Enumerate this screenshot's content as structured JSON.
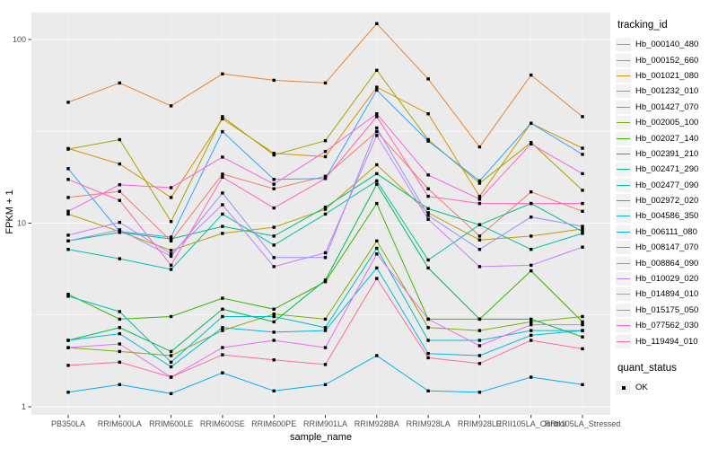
{
  "figure": {
    "background": "#FFFFFF",
    "panel_bg": "#EBEBEB",
    "grid_color": "#FFFFFF",
    "tick_label_color": "#4D4D4D",
    "axis_title_color": "#000000"
  },
  "chart_data": {
    "type": "line",
    "title": "",
    "xlabel": "sample_name",
    "ylabel": "FPKM + 1",
    "y_scale": "log10",
    "grid": true,
    "legend_position": "right",
    "y_ticks": [
      {
        "label": "100",
        "value": 100
      },
      {
        "label": "10",
        "value": 10
      },
      {
        "label": "1",
        "value": 1
      }
    ],
    "y_minor_breaks": [
      31.623,
      3.1623
    ],
    "ylim": [
      0.9,
      140
    ],
    "categories": [
      "PB350LA",
      "RRIM600LA",
      "RRIM600LE",
      "RRIM600SE",
      "RRIM600PE",
      "RRIM901LA",
      "RRIM928BA",
      "RRIM928LA",
      "RRIM928LE",
      "RRII105LA_Control",
      "RRII105LA_Stressed"
    ],
    "color_legend_title": "tracking_id",
    "shape_legend_title": "quant_status",
    "shape_legend": [
      {
        "label": "OK",
        "marker": "square",
        "color": "#000000"
      }
    ],
    "point_marker": {
      "shape": "square",
      "color": "#000000",
      "size": 3.4
    },
    "series": [
      {
        "name": "Hb_000140_480",
        "color": "#F8766D",
        "values": [
          13.8,
          14.9,
          8.0,
          18.5,
          15.4,
          18.0,
          31.5,
          15.4,
          8.5,
          14.8,
          11.6
        ]
      },
      {
        "name": "Hb_000152_660",
        "color": "#EA8331",
        "values": [
          45.5,
          58,
          43.5,
          65,
          60,
          58,
          122,
          61,
          26,
          64,
          38
        ]
      },
      {
        "name": "Hb_001021_080",
        "color": "#D89000",
        "values": [
          25.5,
          21,
          13.8,
          37,
          24,
          23,
          55,
          39.4,
          14,
          35,
          25.6
        ]
      },
      {
        "name": "Hb_001232_010",
        "color": "#C09B00",
        "values": [
          11.2,
          9.0,
          7.1,
          8.8,
          9.5,
          11.9,
          20.8,
          11.4,
          8.1,
          8.5,
          9.3
        ]
      },
      {
        "name": "Hb_001427_070",
        "color": "#A3A500",
        "values": [
          25.3,
          28.5,
          10.2,
          38,
          23.5,
          28.1,
          68,
          28.5,
          16.5,
          27.5,
          15.1
        ]
      },
      {
        "name": "Hb_002005_100",
        "color": "#7CAE00",
        "values": [
          2.1,
          2.0,
          1.9,
          2.6,
          3.2,
          3.0,
          8.0,
          2.7,
          2.6,
          2.9,
          3.1
        ]
      },
      {
        "name": "Hb_002027_140",
        "color": "#39B600",
        "values": [
          4.1,
          3.0,
          3.1,
          3.9,
          3.4,
          4.8,
          12.8,
          3.0,
          3.0,
          5.5,
          2.9
        ]
      },
      {
        "name": "Hb_002391_210",
        "color": "#00BB4E",
        "values": [
          2.3,
          2.7,
          2.0,
          3.4,
          2.9,
          4.9,
          16.3,
          5.7,
          3.0,
          3.0,
          2.4
        ]
      },
      {
        "name": "Hb_002471_290",
        "color": "#00BF7D",
        "values": [
          8.0,
          8.9,
          8.2,
          9.6,
          8.5,
          12.2,
          18.6,
          12.0,
          9.8,
          12.8,
          9.0
        ]
      },
      {
        "name": "Hb_002477_090",
        "color": "#00C1A3",
        "values": [
          7.2,
          6.4,
          5.6,
          11.2,
          7.6,
          11.2,
          17.0,
          6.3,
          9.8,
          7.2,
          8.8
        ]
      },
      {
        "name": "Hb_002972_020",
        "color": "#00BFC4",
        "values": [
          4.0,
          3.3,
          1.75,
          3.1,
          3.1,
          2.7,
          7.3,
          2.3,
          2.3,
          2.6,
          2.6
        ]
      },
      {
        "name": "Hb_004586_350",
        "color": "#00BAE0",
        "values": [
          2.3,
          2.5,
          1.65,
          2.7,
          2.55,
          2.6,
          5.7,
          1.95,
          1.9,
          2.45,
          2.6
        ]
      },
      {
        "name": "Hb_006111_080",
        "color": "#00B0F6",
        "values": [
          1.2,
          1.32,
          1.18,
          1.53,
          1.22,
          1.32,
          1.9,
          1.22,
          1.2,
          1.45,
          1.32
        ]
      },
      {
        "name": "Hb_008147_070",
        "color": "#35A2FF",
        "values": [
          19.8,
          9.0,
          8.4,
          31.5,
          17.3,
          17.5,
          53,
          28,
          17,
          35,
          23.7
        ]
      },
      {
        "name": "Hb_008864_090",
        "color": "#9590FF",
        "values": [
          8.0,
          9.2,
          6.6,
          14.6,
          6.5,
          6.5,
          33,
          11,
          7.2,
          10.8,
          9.6
        ]
      },
      {
        "name": "Hb_010029_020",
        "color": "#C77CFF",
        "values": [
          8.6,
          10.1,
          6.8,
          12.6,
          5.8,
          6.9,
          30,
          10.5,
          5.8,
          5.9,
          7.4
        ]
      },
      {
        "name": "Hb_014894_010",
        "color": "#E76BF3",
        "values": [
          2.1,
          2.2,
          1.45,
          2.1,
          2.3,
          2.1,
          6.8,
          3.0,
          2.15,
          2.8,
          2.8
        ]
      },
      {
        "name": "Hb_015175_050",
        "color": "#FA62DB",
        "values": [
          11.6,
          16.2,
          15.6,
          22.9,
          16.3,
          24.6,
          39.4,
          18.3,
          13.5,
          27,
          18.6
        ]
      },
      {
        "name": "Hb_077562_030",
        "color": "#FF62BC",
        "values": [
          17.3,
          13.3,
          5.9,
          17.8,
          12.1,
          17.5,
          38,
          14,
          12.8,
          12.8,
          12.8
        ]
      },
      {
        "name": "Hb_119494_010",
        "color": "#FF6A98",
        "values": [
          1.68,
          1.75,
          1.45,
          1.92,
          1.8,
          1.7,
          5.0,
          1.85,
          1.72,
          2.3,
          2.07
        ]
      }
    ]
  }
}
